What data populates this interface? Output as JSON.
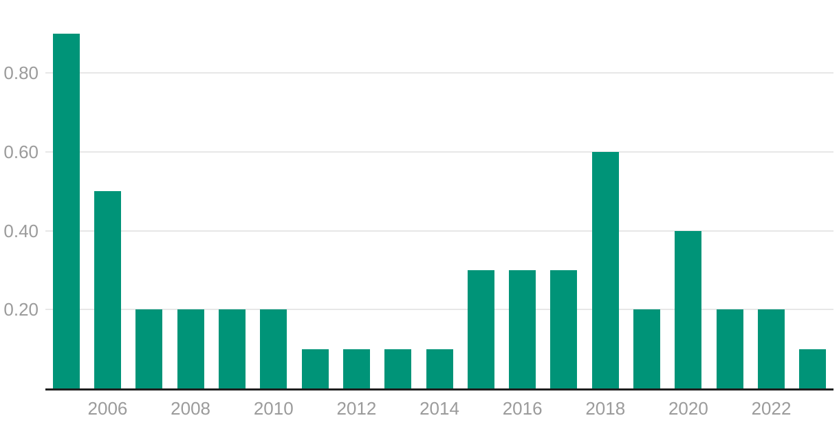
{
  "chart_data": {
    "type": "bar",
    "categories": [
      "2005",
      "2006",
      "2007",
      "2008",
      "2009",
      "2010",
      "2011",
      "2012",
      "2013",
      "2014",
      "2015",
      "2016",
      "2017",
      "2018",
      "2019",
      "2020",
      "2021",
      "2022",
      "2023"
    ],
    "values": [
      0.9,
      0.5,
      0.2,
      0.2,
      0.2,
      0.2,
      0.1,
      0.1,
      0.1,
      0.1,
      0.3,
      0.3,
      0.3,
      0.6,
      0.2,
      0.4,
      0.2,
      0.2,
      0.1
    ],
    "title": "",
    "xlabel": "",
    "ylabel": "",
    "ylim": [
      0,
      0.985
    ],
    "y_ticks": [
      {
        "value": 0.2,
        "label": "0.20"
      },
      {
        "value": 0.4,
        "label": "0.40"
      },
      {
        "value": 0.6,
        "label": "0.60"
      },
      {
        "value": 0.8,
        "label": "0.80"
      }
    ],
    "x_tick_labels": [
      "2006",
      "2008",
      "2010",
      "2012",
      "2014",
      "2016",
      "2018",
      "2020",
      "2022"
    ],
    "grid": true,
    "legend": false,
    "colors": {
      "bar": "#009478",
      "gridline": "#e7e7e7",
      "axis_line": "#1f1f1f",
      "tick_label": "#9b9b9b",
      "background": "#ffffff"
    }
  }
}
